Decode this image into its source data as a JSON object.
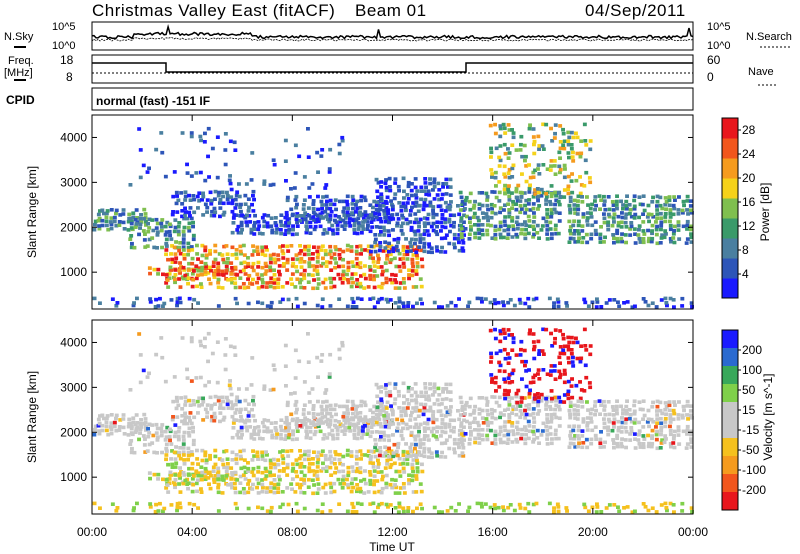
{
  "header": {
    "station": "Christmas Valley East (fitACF)",
    "beam": "Beam 01",
    "date": "04/Sep/2011"
  },
  "summary_panel": {
    "nsky_label": "N.Sky",
    "nsky_ticks": [
      "10^5",
      "10^0"
    ],
    "nsearch_label": "N.Search",
    "nsearch_ticks": [
      "10^5",
      "10^0"
    ]
  },
  "freq_panel": {
    "freq_label": "Freq.",
    "freq_unit": "[MHz]",
    "freq_ticks": [
      "18",
      "8"
    ],
    "nave_label": "Nave",
    "nave_ticks": [
      "60",
      "0"
    ]
  },
  "cpid": {
    "label": "CPID",
    "text": "normal (fast) -151 IF"
  },
  "colors": {
    "power_scale": [
      "#1a1aff",
      "#2d55b8",
      "#4a7fa0",
      "#3a9a6a",
      "#7fbf4f",
      "#f5d21a",
      "#f59b1e",
      "#f2561c",
      "#e8161c"
    ],
    "velocity_scale": [
      "#1a1aff",
      "#2a6ad0",
      "#38a85a",
      "#7fd04a",
      "#c8c8c8",
      "#c8c8c8",
      "#f5c11e",
      "#f59b1e",
      "#f2561c",
      "#e8161c"
    ]
  },
  "chart_data": [
    {
      "type": "heatmap",
      "ylabel": "Slant Range [km]",
      "xlabel": "Time UT",
      "x_ticks": [
        "00:00",
        "04:00",
        "08:00",
        "12:00",
        "16:00",
        "20:00",
        "00:00"
      ],
      "y_ticks": [
        1000,
        2000,
        3000,
        4000
      ],
      "ylim": [
        180,
        4500
      ],
      "colorbar": {
        "label": "Power [dB]",
        "ticks": [
          4,
          8,
          12,
          16,
          20,
          24,
          28
        ],
        "range": [
          0,
          30
        ]
      }
    },
    {
      "type": "heatmap",
      "ylabel": "Slant Range [km]",
      "xlabel": "Time UT",
      "x_ticks": [
        "00:00",
        "04:00",
        "08:00",
        "12:00",
        "16:00",
        "20:00",
        "00:00"
      ],
      "y_ticks": [
        1000,
        2000,
        3000,
        4000
      ],
      "ylim": [
        180,
        4500
      ],
      "colorbar": {
        "label": "Velocity [m s^-1]",
        "ticks": [
          "200",
          "100",
          "50",
          "15",
          "-15",
          "-50",
          "-100",
          "-200"
        ]
      }
    }
  ]
}
